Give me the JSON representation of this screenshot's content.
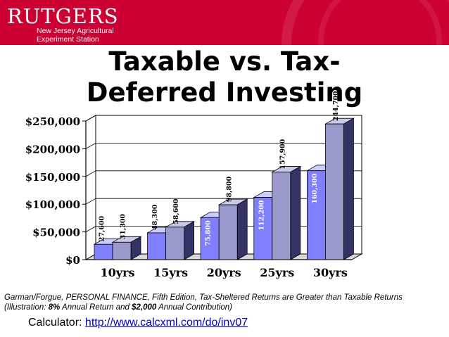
{
  "header": {
    "logo_name": "RUTGERS",
    "logo_line1": "New Jersey Agricultural",
    "logo_line2": "Experiment Station"
  },
  "title_line1": "Taxable vs. Tax-",
  "title_line2": "Deferred Investing",
  "caption": {
    "part1": "Garman/Forgue, PERSONAL FINANCE, Fifth Edition, Tax-Sheltered Returns are Greater than Taxable Returns (Illustration: ",
    "rate": "8%",
    "part2": " Annual Return and ",
    "contribution": "$2,000",
    "part3": " Annual Contribution)"
  },
  "calculator": {
    "label": "Calculator: ",
    "url": "http://www.calcxml.com/do/inv07"
  },
  "colors": {
    "banner": "#cc0033",
    "taxable_front": "#8080ff",
    "deferred_front": "#9999cc",
    "link": "#0000cc"
  },
  "chart_data": {
    "type": "bar",
    "categories": [
      "10yrs",
      "15yrs",
      "20yrs",
      "25yrs",
      "30yrs"
    ],
    "series": [
      {
        "values": [
          27600,
          48300,
          75800,
          112200,
          160300
        ],
        "labels": [
          "27,600",
          "48,300",
          "75,800",
          "112,200",
          "160,300"
        ]
      },
      {
        "values": [
          31300,
          58600,
          98800,
          157900,
          244700
        ],
        "labels": [
          "31,300",
          "58,600",
          "98,800",
          "157,900",
          "244,700"
        ]
      }
    ],
    "yticks": [
      0,
      50000,
      100000,
      150000,
      200000,
      250000
    ],
    "ytick_labels": [
      "$0",
      "$50,000",
      "$100,000",
      "$150,000",
      "$200,000",
      "$250,000"
    ],
    "ylim": [
      0,
      250000
    ],
    "style": "3d"
  }
}
